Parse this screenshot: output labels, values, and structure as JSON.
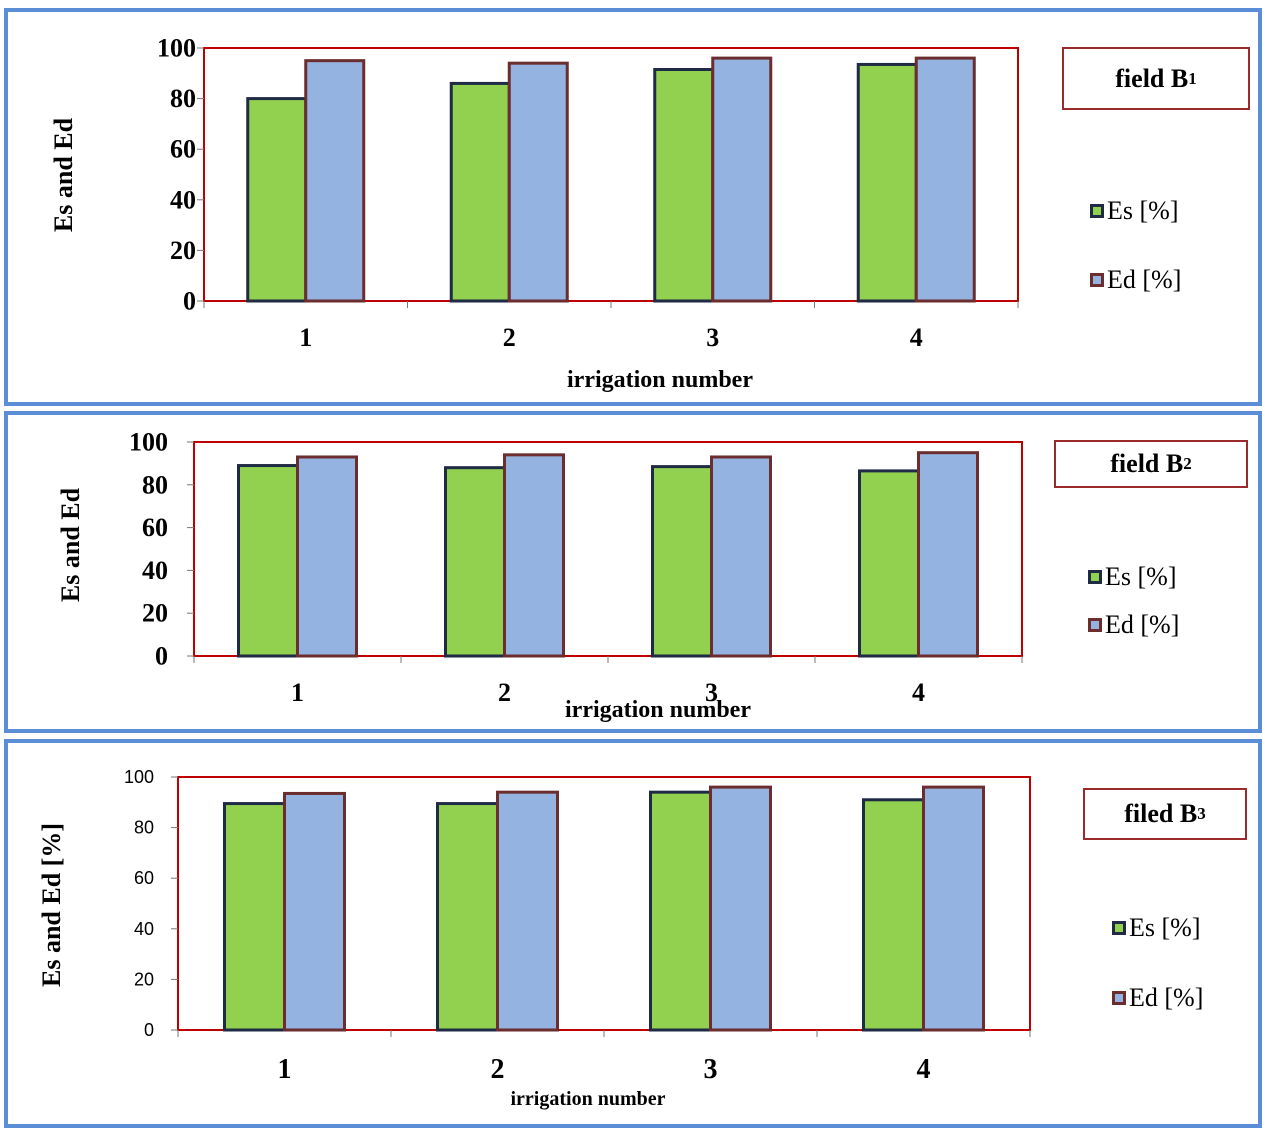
{
  "colors": {
    "es_fill": "#92d050",
    "es_edge": "#1f2a44",
    "ed_fill": "#95b3e0",
    "ed_edge": "#6b2d2d",
    "plot_border": "#c00000",
    "panel_border": "#5b8ed6"
  },
  "legend": {
    "es_label": "Es [%]",
    "ed_label": "Ed [%]"
  },
  "chart_data": [
    {
      "type": "bar",
      "title": "field B",
      "title_subscript": "1",
      "xlabel": "irrigation number",
      "ylabel": "Es and Ed",
      "ylim": [
        0,
        100
      ],
      "yticks": [
        "0",
        "20",
        "40",
        "60",
        "80",
        "100"
      ],
      "categories": [
        "1",
        "2",
        "3",
        "4"
      ],
      "series": [
        {
          "name": "Es [%]",
          "values": [
            80,
            86,
            91.5,
            93.5
          ]
        },
        {
          "name": "Ed [%]",
          "values": [
            95,
            94,
            96,
            96
          ]
        }
      ],
      "grid": false,
      "legend_position": "right"
    },
    {
      "type": "bar",
      "title": "field B",
      "title_subscript": "2",
      "xlabel": "irrigation number",
      "ylabel": "Es and Ed",
      "ylim": [
        0,
        100
      ],
      "yticks": [
        "0",
        "20",
        "40",
        "60",
        "80",
        "100"
      ],
      "categories": [
        "1",
        "2",
        "3",
        "4"
      ],
      "series": [
        {
          "name": "Es [%]",
          "values": [
            89,
            88,
            88.5,
            86.5
          ]
        },
        {
          "name": "Ed [%]",
          "values": [
            93,
            94,
            93,
            95
          ]
        }
      ],
      "grid": false,
      "legend_position": "right"
    },
    {
      "type": "bar",
      "title": "filed B",
      "title_subscript": "3",
      "xlabel": "irrigation number",
      "ylabel": "Es and Ed [%]",
      "ylim": [
        0,
        100
      ],
      "yticks": [
        "0",
        "20",
        "40",
        "60",
        "80",
        "100"
      ],
      "categories": [
        "1",
        "2",
        "3",
        "4"
      ],
      "series": [
        {
          "name": "Es [%]",
          "values": [
            89.5,
            89.5,
            94,
            91
          ]
        },
        {
          "name": "Ed [%]",
          "values": [
            93.5,
            94,
            96,
            96
          ]
        }
      ],
      "grid": false,
      "legend_position": "right"
    }
  ]
}
